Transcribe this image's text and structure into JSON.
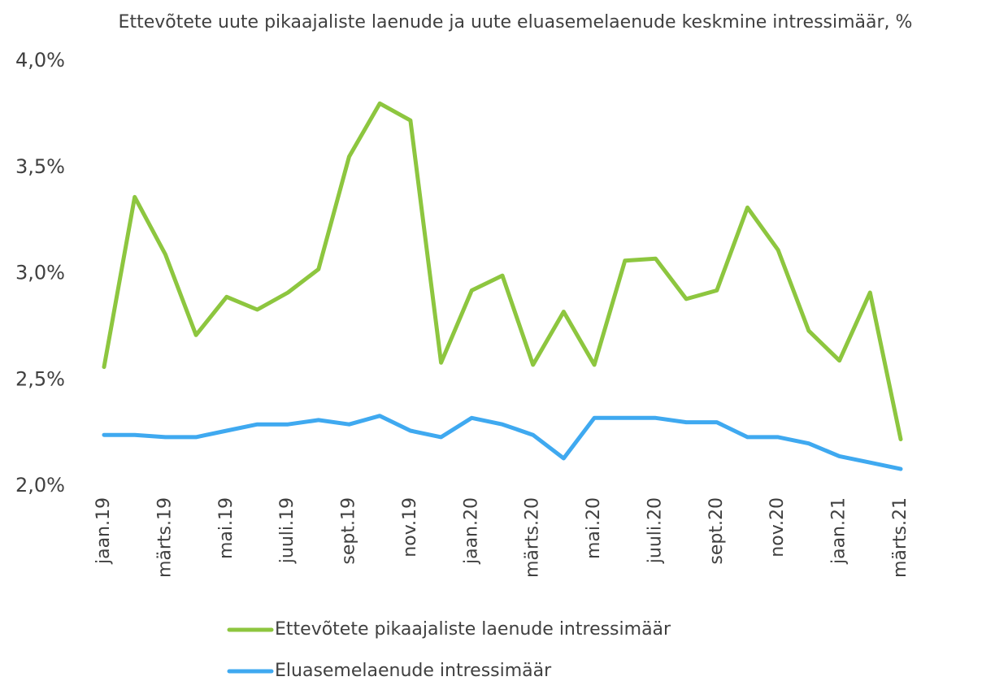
{
  "chart_data": {
    "type": "line",
    "title": "Ettevõtete uute pikaajaliste laenude ja uute eluasemelaenude keskmine intressimäär, %",
    "categories": [
      "jaan.19",
      null,
      "märts.19",
      null,
      "mai.19",
      null,
      "juuli.19",
      null,
      "sept.19",
      null,
      "nov.19",
      null,
      "jaan.20",
      null,
      "märts.20",
      null,
      "mai.20",
      null,
      "juuli.20",
      null,
      "sept.20",
      null,
      "nov.20",
      null,
      "jaan.21",
      null,
      "märts.21"
    ],
    "series": [
      {
        "name": "Ettevõtete pikaajaliste laenude intressimäär",
        "color": "#8dc63f",
        "values": [
          2.56,
          3.36,
          3.09,
          2.71,
          2.89,
          2.83,
          2.91,
          3.02,
          3.55,
          3.8,
          3.72,
          2.58,
          2.92,
          2.99,
          2.57,
          2.82,
          2.57,
          3.06,
          3.07,
          2.88,
          2.92,
          3.31,
          3.11,
          2.73,
          2.59,
          2.91,
          2.22
        ]
      },
      {
        "name": "Eluasemelaenude intressimäär",
        "color": "#3fa9f0",
        "values": [
          2.24,
          2.24,
          2.23,
          2.23,
          2.26,
          2.29,
          2.29,
          2.31,
          2.29,
          2.33,
          2.26,
          2.23,
          2.32,
          2.29,
          2.24,
          2.13,
          2.32,
          2.32,
          2.32,
          2.3,
          2.3,
          2.23,
          2.23,
          2.2,
          2.14,
          2.11,
          2.08
        ]
      }
    ],
    "ylim": [
      2.0,
      4.0
    ],
    "yticks": [
      {
        "value": 2.0,
        "label": "2,0%"
      },
      {
        "value": 2.5,
        "label": "2,5%"
      },
      {
        "value": 3.0,
        "label": "3,0%"
      },
      {
        "value": 3.5,
        "label": "3,5%"
      },
      {
        "value": 4.0,
        "label": "4,0%"
      }
    ],
    "grid": false,
    "legend": "bottom"
  }
}
